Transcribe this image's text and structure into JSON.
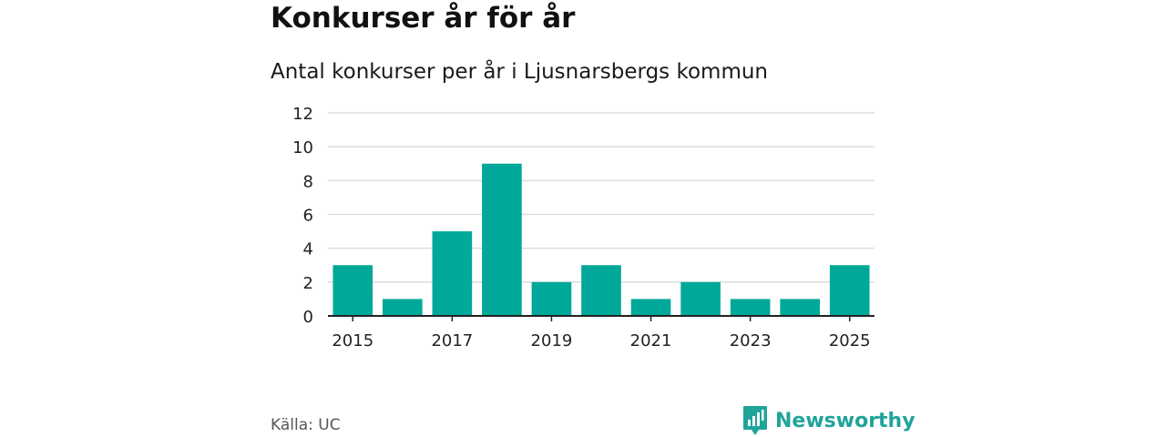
{
  "title": "Konkurser år för år",
  "subtitle": "Antal konkurser per år i Ljusnarsbergs kommun",
  "source": "Källa: UC",
  "brand": {
    "name": "Newsworthy",
    "icon": "newsworthy-logo-icon"
  },
  "colors": {
    "bar": "#00a89a",
    "grid": "#dddddd",
    "axis": "#222222",
    "brand": "#20a49a"
  },
  "chart_data": {
    "type": "bar",
    "x": [
      2015,
      2016,
      2017,
      2018,
      2019,
      2020,
      2021,
      2022,
      2023,
      2024,
      2025
    ],
    "values": [
      3,
      1,
      5,
      9,
      2,
      3,
      1,
      2,
      1,
      1,
      3
    ],
    "x_tick_labels": [
      "2015",
      "2017",
      "2019",
      "2021",
      "2023",
      "2025"
    ],
    "y_ticks": [
      0,
      2,
      4,
      6,
      8,
      10,
      12
    ],
    "ylim": [
      0,
      12
    ],
    "xlabel": "",
    "ylabel": "",
    "grid": true,
    "legend": "none"
  }
}
